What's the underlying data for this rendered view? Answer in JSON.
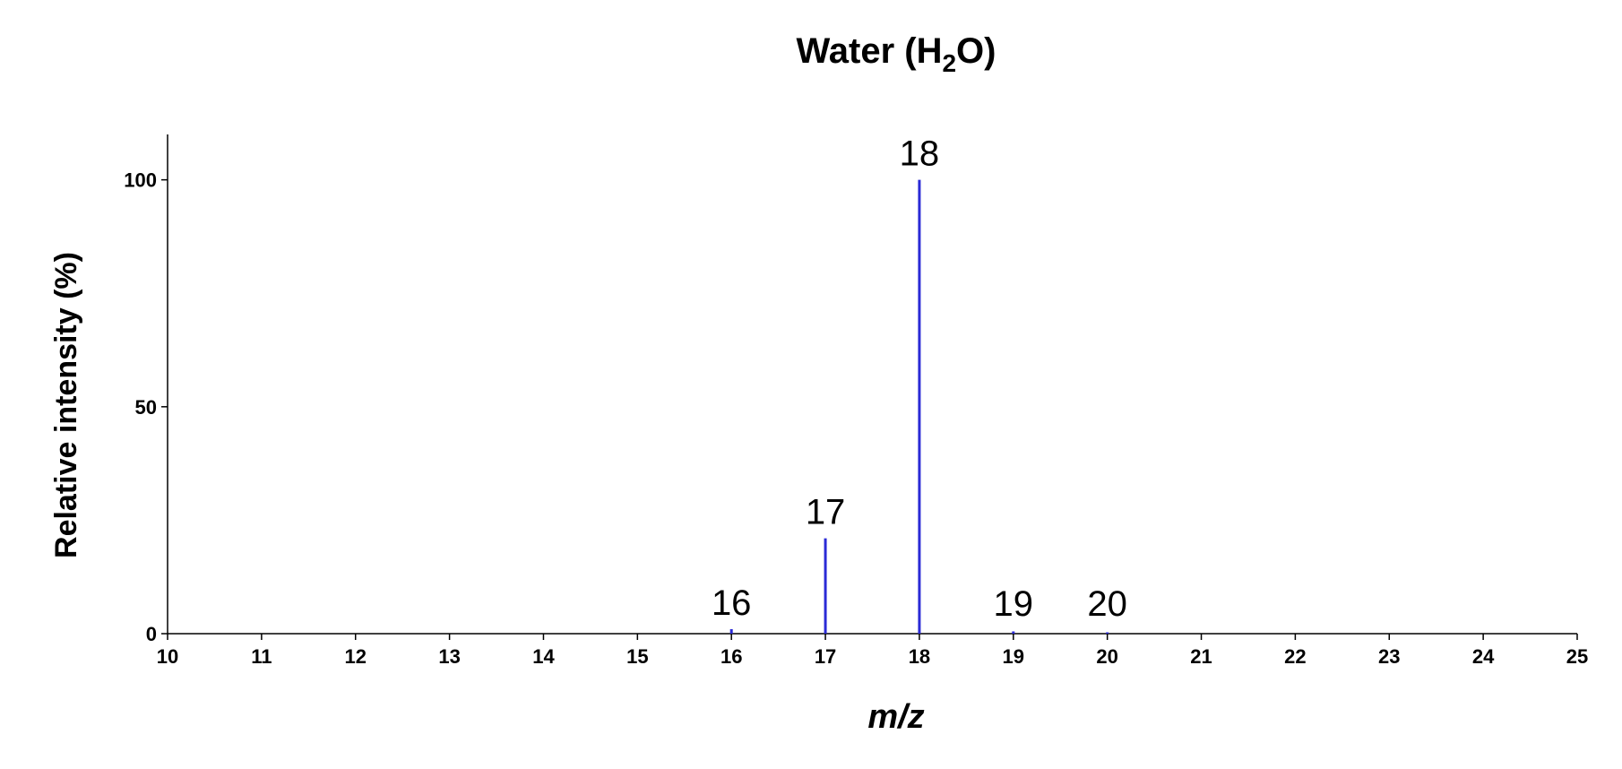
{
  "chart_data": {
    "type": "bar",
    "title": {
      "main": "Water (H",
      "sub": "2",
      "tail": "O)"
    },
    "xlabel": "m/z",
    "ylabel": "Relative intensity (%)",
    "xlim": [
      10,
      25
    ],
    "ylim": [
      0,
      110
    ],
    "x_ticks": [
      10,
      11,
      12,
      13,
      14,
      15,
      16,
      17,
      18,
      19,
      20,
      21,
      22,
      23,
      24,
      25
    ],
    "y_ticks": [
      0,
      50,
      100
    ],
    "grid": false,
    "bar_color": "#2b2bd6",
    "series": [
      {
        "name": "H2O",
        "x": [
          16,
          17,
          18,
          19,
          20
        ],
        "values": [
          1,
          21,
          100,
          0.5,
          0.3
        ],
        "labels": [
          "16",
          "17",
          "18",
          "19",
          "20"
        ]
      }
    ]
  }
}
